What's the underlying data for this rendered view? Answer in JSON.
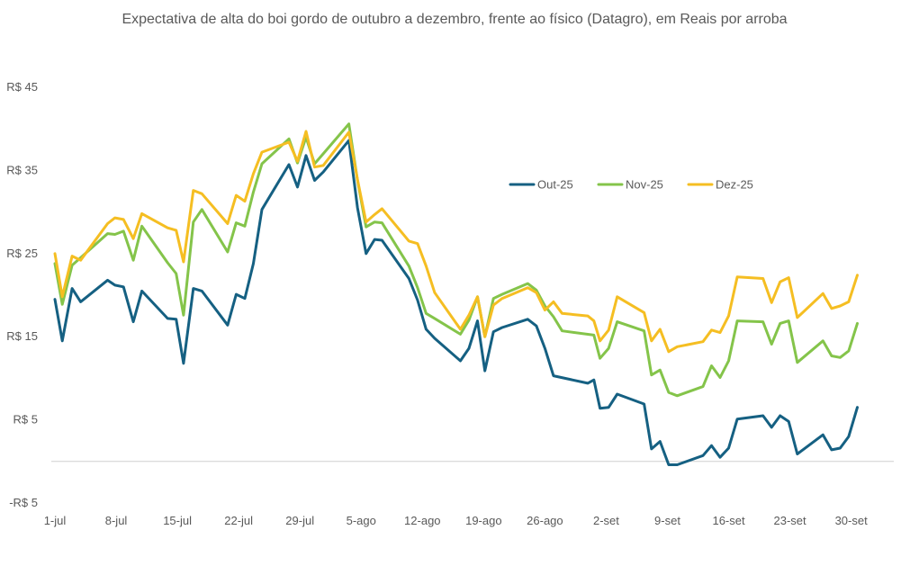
{
  "chart_data": {
    "type": "line",
    "title": "Expectativa de alta do boi gordo de outubro a dezembro, frente ao físico (Datagro), em Reais por arroba",
    "xlabel": "",
    "ylabel": "",
    "ylim": [
      -5,
      45
    ],
    "yticks": [
      {
        "value": 45,
        "label": "R$ 45"
      },
      {
        "value": 35,
        "label": "R$ 35"
      },
      {
        "value": 25,
        "label": "R$ 25"
      },
      {
        "value": 15,
        "label": "R$ 15"
      },
      {
        "value": 5,
        "label": "R$ 5"
      },
      {
        "value": -5,
        "label": "-R$ 5"
      }
    ],
    "xticks": [
      {
        "index": 0,
        "label": "1-jul"
      },
      {
        "index": 5,
        "label": "8-jul"
      },
      {
        "index": 10,
        "label": "15-jul"
      },
      {
        "index": 15,
        "label": "22-jul"
      },
      {
        "index": 20,
        "label": "29-jul"
      },
      {
        "index": 25,
        "label": "5-ago"
      },
      {
        "index": 30,
        "label": "12-ago"
      },
      {
        "index": 35,
        "label": "19-ago"
      },
      {
        "index": 40,
        "label": "26-ago"
      },
      {
        "index": 45,
        "label": "2-set"
      },
      {
        "index": 50,
        "label": "9-set"
      },
      {
        "index": 55,
        "label": "16-set"
      },
      {
        "index": 60,
        "label": "23-set"
      },
      {
        "index": 65,
        "label": "30-set"
      }
    ],
    "legend_position": "upper-right",
    "series": [
      {
        "name": "Out-25",
        "color": "#156082",
        "values": [
          {
            "i": 0,
            "v": 19.5
          },
          {
            "i": 0.6,
            "v": 14.5
          },
          {
            "i": 1.4,
            "v": 20.8
          },
          {
            "i": 2.1,
            "v": 19.2
          },
          {
            "i": 4.3,
            "v": 21.8
          },
          {
            "i": 4.9,
            "v": 21.2
          },
          {
            "i": 5.6,
            "v": 21.0
          },
          {
            "i": 6.4,
            "v": 16.8
          },
          {
            "i": 7.1,
            "v": 20.5
          },
          {
            "i": 9.2,
            "v": 17.2
          },
          {
            "i": 9.9,
            "v": 17.1
          },
          {
            "i": 10.5,
            "v": 11.8
          },
          {
            "i": 11.3,
            "v": 20.8
          },
          {
            "i": 12.0,
            "v": 20.5
          },
          {
            "i": 14.1,
            "v": 16.4
          },
          {
            "i": 14.8,
            "v": 20.1
          },
          {
            "i": 15.5,
            "v": 19.6
          },
          {
            "i": 16.2,
            "v": 23.8
          },
          {
            "i": 16.9,
            "v": 30.3
          },
          {
            "i": 19.1,
            "v": 35.7
          },
          {
            "i": 19.8,
            "v": 33.0
          },
          {
            "i": 20.5,
            "v": 36.8
          },
          {
            "i": 21.2,
            "v": 33.8
          },
          {
            "i": 21.9,
            "v": 34.8
          },
          {
            "i": 24.0,
            "v": 38.6
          },
          {
            "i": 24.7,
            "v": 30.5
          },
          {
            "i": 25.4,
            "v": 25.0
          },
          {
            "i": 26.1,
            "v": 26.7
          },
          {
            "i": 26.7,
            "v": 26.6
          },
          {
            "i": 28.9,
            "v": 22.0
          },
          {
            "i": 29.6,
            "v": 19.4
          },
          {
            "i": 30.3,
            "v": 15.9
          },
          {
            "i": 31.0,
            "v": 14.8
          },
          {
            "i": 33.1,
            "v": 12.1
          },
          {
            "i": 33.8,
            "v": 13.6
          },
          {
            "i": 34.5,
            "v": 16.9
          },
          {
            "i": 35.1,
            "v": 10.9
          },
          {
            "i": 35.8,
            "v": 15.6
          },
          {
            "i": 36.5,
            "v": 16.1
          },
          {
            "i": 38.6,
            "v": 17.1
          },
          {
            "i": 39.3,
            "v": 16.3
          },
          {
            "i": 40.0,
            "v": 13.6
          },
          {
            "i": 40.7,
            "v": 10.3
          },
          {
            "i": 43.5,
            "v": 9.4
          },
          {
            "i": 44.0,
            "v": 9.8
          },
          {
            "i": 44.5,
            "v": 6.4
          },
          {
            "i": 45.2,
            "v": 6.5
          },
          {
            "i": 45.9,
            "v": 8.1
          },
          {
            "i": 48.1,
            "v": 6.9
          },
          {
            "i": 48.7,
            "v": 1.5
          },
          {
            "i": 49.4,
            "v": 2.4
          },
          {
            "i": 50.1,
            "v": -0.4
          },
          {
            "i": 50.8,
            "v": -0.4
          },
          {
            "i": 52.9,
            "v": 0.7
          },
          {
            "i": 53.6,
            "v": 1.9
          },
          {
            "i": 54.3,
            "v": 0.5
          },
          {
            "i": 55.0,
            "v": 1.6
          },
          {
            "i": 55.7,
            "v": 5.1
          },
          {
            "i": 57.8,
            "v": 5.5
          },
          {
            "i": 58.5,
            "v": 4.1
          },
          {
            "i": 59.2,
            "v": 5.5
          },
          {
            "i": 59.9,
            "v": 4.8
          },
          {
            "i": 60.6,
            "v": 0.9
          },
          {
            "i": 62.7,
            "v": 3.2
          },
          {
            "i": 63.4,
            "v": 1.4
          },
          {
            "i": 64.1,
            "v": 1.6
          },
          {
            "i": 64.8,
            "v": 3.0
          },
          {
            "i": 65.5,
            "v": 6.5
          }
        ]
      },
      {
        "name": "Nov-25",
        "color": "#84C44A",
        "values": [
          {
            "i": 0,
            "v": 23.8
          },
          {
            "i": 0.6,
            "v": 18.9
          },
          {
            "i": 1.4,
            "v": 23.6
          },
          {
            "i": 2.1,
            "v": 24.5
          },
          {
            "i": 4.3,
            "v": 27.4
          },
          {
            "i": 4.9,
            "v": 27.3
          },
          {
            "i": 5.6,
            "v": 27.7
          },
          {
            "i": 6.4,
            "v": 24.2
          },
          {
            "i": 7.1,
            "v": 28.3
          },
          {
            "i": 9.2,
            "v": 23.9
          },
          {
            "i": 9.9,
            "v": 22.6
          },
          {
            "i": 10.5,
            "v": 17.6
          },
          {
            "i": 11.3,
            "v": 28.8
          },
          {
            "i": 12.0,
            "v": 30.3
          },
          {
            "i": 14.1,
            "v": 25.2
          },
          {
            "i": 14.8,
            "v": 28.7
          },
          {
            "i": 15.5,
            "v": 28.3
          },
          {
            "i": 16.2,
            "v": 32.4
          },
          {
            "i": 16.9,
            "v": 35.8
          },
          {
            "i": 19.1,
            "v": 38.8
          },
          {
            "i": 19.8,
            "v": 35.9
          },
          {
            "i": 20.5,
            "v": 39.0
          },
          {
            "i": 21.2,
            "v": 35.8
          },
          {
            "i": 21.9,
            "v": 37.0
          },
          {
            "i": 24.0,
            "v": 40.6
          },
          {
            "i": 24.7,
            "v": 33.8
          },
          {
            "i": 25.4,
            "v": 28.2
          },
          {
            "i": 26.1,
            "v": 28.8
          },
          {
            "i": 26.7,
            "v": 28.7
          },
          {
            "i": 28.9,
            "v": 23.5
          },
          {
            "i": 29.6,
            "v": 20.9
          },
          {
            "i": 30.3,
            "v": 17.8
          },
          {
            "i": 31.0,
            "v": 17.2
          },
          {
            "i": 33.1,
            "v": 15.3
          },
          {
            "i": 33.8,
            "v": 17.0
          },
          {
            "i": 34.5,
            "v": 19.8
          },
          {
            "i": 35.1,
            "v": 15.0
          },
          {
            "i": 35.8,
            "v": 19.6
          },
          {
            "i": 36.5,
            "v": 20.1
          },
          {
            "i": 38.6,
            "v": 21.4
          },
          {
            "i": 39.3,
            "v": 20.6
          },
          {
            "i": 40.0,
            "v": 18.7
          },
          {
            "i": 40.7,
            "v": 17.4
          },
          {
            "i": 41.4,
            "v": 15.7
          },
          {
            "i": 44.0,
            "v": 15.2
          },
          {
            "i": 44.5,
            "v": 12.4
          },
          {
            "i": 45.2,
            "v": 13.6
          },
          {
            "i": 45.9,
            "v": 16.8
          },
          {
            "i": 48.1,
            "v": 15.7
          },
          {
            "i": 48.7,
            "v": 10.4
          },
          {
            "i": 49.4,
            "v": 11.0
          },
          {
            "i": 50.1,
            "v": 8.3
          },
          {
            "i": 50.8,
            "v": 7.9
          },
          {
            "i": 52.9,
            "v": 9.0
          },
          {
            "i": 53.6,
            "v": 11.5
          },
          {
            "i": 54.3,
            "v": 10.1
          },
          {
            "i": 55.0,
            "v": 12.1
          },
          {
            "i": 55.7,
            "v": 16.9
          },
          {
            "i": 57.8,
            "v": 16.8
          },
          {
            "i": 58.5,
            "v": 14.1
          },
          {
            "i": 59.2,
            "v": 16.6
          },
          {
            "i": 59.9,
            "v": 16.9
          },
          {
            "i": 60.6,
            "v": 11.9
          },
          {
            "i": 62.7,
            "v": 14.5
          },
          {
            "i": 63.4,
            "v": 12.7
          },
          {
            "i": 64.1,
            "v": 12.5
          },
          {
            "i": 64.8,
            "v": 13.3
          },
          {
            "i": 65.5,
            "v": 16.6
          }
        ]
      },
      {
        "name": "Dez-25",
        "color": "#F5BE22",
        "values": [
          {
            "i": 0,
            "v": 25.0
          },
          {
            "i": 0.6,
            "v": 19.8
          },
          {
            "i": 1.4,
            "v": 24.7
          },
          {
            "i": 2.1,
            "v": 24.2
          },
          {
            "i": 4.3,
            "v": 28.6
          },
          {
            "i": 4.9,
            "v": 29.3
          },
          {
            "i": 5.6,
            "v": 29.1
          },
          {
            "i": 6.4,
            "v": 26.8
          },
          {
            "i": 7.1,
            "v": 29.8
          },
          {
            "i": 9.2,
            "v": 28.1
          },
          {
            "i": 9.9,
            "v": 27.8
          },
          {
            "i": 10.5,
            "v": 24.0
          },
          {
            "i": 11.3,
            "v": 32.6
          },
          {
            "i": 12.0,
            "v": 32.2
          },
          {
            "i": 14.1,
            "v": 28.6
          },
          {
            "i": 14.8,
            "v": 32.0
          },
          {
            "i": 15.5,
            "v": 31.3
          },
          {
            "i": 16.2,
            "v": 34.6
          },
          {
            "i": 16.9,
            "v": 37.2
          },
          {
            "i": 19.1,
            "v": 38.4
          },
          {
            "i": 19.8,
            "v": 36.1
          },
          {
            "i": 20.5,
            "v": 39.7
          },
          {
            "i": 21.2,
            "v": 35.4
          },
          {
            "i": 21.9,
            "v": 35.6
          },
          {
            "i": 24.0,
            "v": 39.6
          },
          {
            "i": 24.7,
            "v": 33.9
          },
          {
            "i": 25.4,
            "v": 28.8
          },
          {
            "i": 26.1,
            "v": 29.7
          },
          {
            "i": 26.7,
            "v": 30.4
          },
          {
            "i": 28.9,
            "v": 26.5
          },
          {
            "i": 29.6,
            "v": 26.2
          },
          {
            "i": 30.3,
            "v": 23.5
          },
          {
            "i": 31.0,
            "v": 20.3
          },
          {
            "i": 33.1,
            "v": 15.9
          },
          {
            "i": 33.8,
            "v": 17.6
          },
          {
            "i": 34.5,
            "v": 19.8
          },
          {
            "i": 35.1,
            "v": 15.0
          },
          {
            "i": 35.8,
            "v": 18.8
          },
          {
            "i": 36.5,
            "v": 19.6
          },
          {
            "i": 38.6,
            "v": 20.9
          },
          {
            "i": 39.3,
            "v": 20.3
          },
          {
            "i": 40.0,
            "v": 18.2
          },
          {
            "i": 40.7,
            "v": 19.2
          },
          {
            "i": 41.4,
            "v": 17.8
          },
          {
            "i": 43.5,
            "v": 17.5
          },
          {
            "i": 44.0,
            "v": 16.9
          },
          {
            "i": 44.5,
            "v": 14.5
          },
          {
            "i": 45.2,
            "v": 15.8
          },
          {
            "i": 45.9,
            "v": 19.8
          },
          {
            "i": 48.1,
            "v": 17.9
          },
          {
            "i": 48.7,
            "v": 14.5
          },
          {
            "i": 49.4,
            "v": 15.9
          },
          {
            "i": 50.1,
            "v": 13.2
          },
          {
            "i": 50.8,
            "v": 13.8
          },
          {
            "i": 52.9,
            "v": 14.4
          },
          {
            "i": 53.6,
            "v": 15.8
          },
          {
            "i": 54.3,
            "v": 15.5
          },
          {
            "i": 55.0,
            "v": 17.5
          },
          {
            "i": 55.7,
            "v": 22.2
          },
          {
            "i": 57.8,
            "v": 22.0
          },
          {
            "i": 58.5,
            "v": 19.1
          },
          {
            "i": 59.2,
            "v": 21.6
          },
          {
            "i": 59.9,
            "v": 22.1
          },
          {
            "i": 60.6,
            "v": 17.3
          },
          {
            "i": 62.7,
            "v": 20.2
          },
          {
            "i": 63.4,
            "v": 18.4
          },
          {
            "i": 64.1,
            "v": 18.7
          },
          {
            "i": 64.8,
            "v": 19.2
          },
          {
            "i": 65.5,
            "v": 22.4
          }
        ]
      }
    ]
  }
}
